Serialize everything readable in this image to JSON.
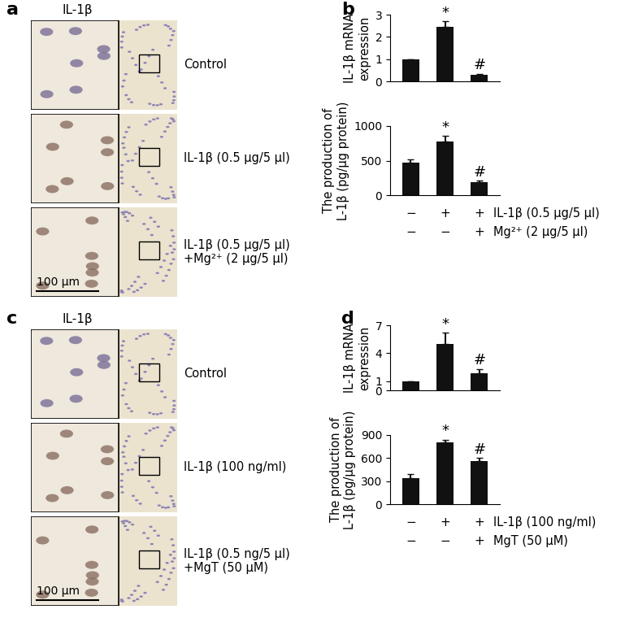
{
  "images": [
    {
      "panel": "a",
      "type": "image",
      "title": "IL-1β",
      "labels": [
        "Control",
        "IL-1β (0.5 μg/5 μl)",
        "IL-1β (0.5 μg/5 μl)\n+Mg²⁺ (2 μg/5 μl)"
      ],
      "scale_bar": "100 μm"
    },
    {
      "panel": "c",
      "type": "image",
      "title": "IL-1β",
      "labels": [
        "Control",
        "IL-1β (100 ng/ml)",
        "IL-1β (0.5 ng/5 μl)\n+MgT (50 μM)"
      ],
      "scale_bar": "100 μm"
    }
  ],
  "chart_data": [
    {
      "panel": "b",
      "type": "bar",
      "ylabel": "IL-1β mRNA\nexpression",
      "categories": [
        null,
        null,
        null
      ],
      "values": [
        1,
        2.45,
        0.3
      ],
      "errors": [
        0,
        0.25,
        0.04
      ],
      "annotations": [
        null,
        "*",
        "#"
      ],
      "ylim": [
        0,
        3
      ],
      "yticks": [
        0,
        1,
        2,
        3
      ],
      "color": "#111111",
      "tick_labels": "y"
    },
    {
      "type": "bar",
      "ylabel": "The production of\nL-1β (pg/μg protein)",
      "categories": [
        null,
        null,
        null
      ],
      "values": [
        470,
        780,
        190
      ],
      "errors": [
        50,
        80,
        20
      ],
      "annotations": [
        null,
        "*",
        "#"
      ],
      "ylim": [
        0,
        1000
      ],
      "yticks": [
        0,
        500,
        1000
      ],
      "color": "#111111",
      "tick_labels": "y",
      "treatments": [
        {
          "label": "IL-1β (0.5 μg/5 μl)",
          "signs": [
            "−",
            "+",
            "+"
          ]
        },
        {
          "label": "Mg²⁺ (2 μg/5 μl)",
          "signs": [
            "−",
            "−",
            "+"
          ]
        }
      ]
    },
    {
      "panel": "d",
      "type": "bar",
      "ylabel": "IL-1β mRNA\nexpression",
      "categories": [
        null,
        null,
        null
      ],
      "values": [
        1,
        5.0,
        1.8
      ],
      "errors": [
        0,
        1.2,
        0.5
      ],
      "annotations": [
        null,
        "*",
        "#"
      ],
      "ylim": [
        0,
        7
      ],
      "yticks": [
        0,
        1,
        4,
        7
      ],
      "color": "#111111",
      "tick_labels": "y"
    },
    {
      "type": "bar",
      "ylabel": "The production of\nL-1β (pg/μg protein)",
      "categories": [
        null,
        null,
        null
      ],
      "values": [
        340,
        800,
        560
      ],
      "errors": [
        50,
        40,
        40
      ],
      "annotations": [
        null,
        "*",
        "#"
      ],
      "ylim": [
        0,
        900
      ],
      "yticks": [
        0,
        300,
        600,
        900
      ],
      "color": "#111111",
      "tick_labels": "y",
      "treatments": [
        {
          "label": "IL-1β (100 ng/ml)",
          "signs": [
            "−",
            "+",
            "+"
          ]
        },
        {
          "label": "MgT (50 μM)",
          "signs": [
            "−",
            "−",
            "+"
          ]
        }
      ]
    }
  ]
}
